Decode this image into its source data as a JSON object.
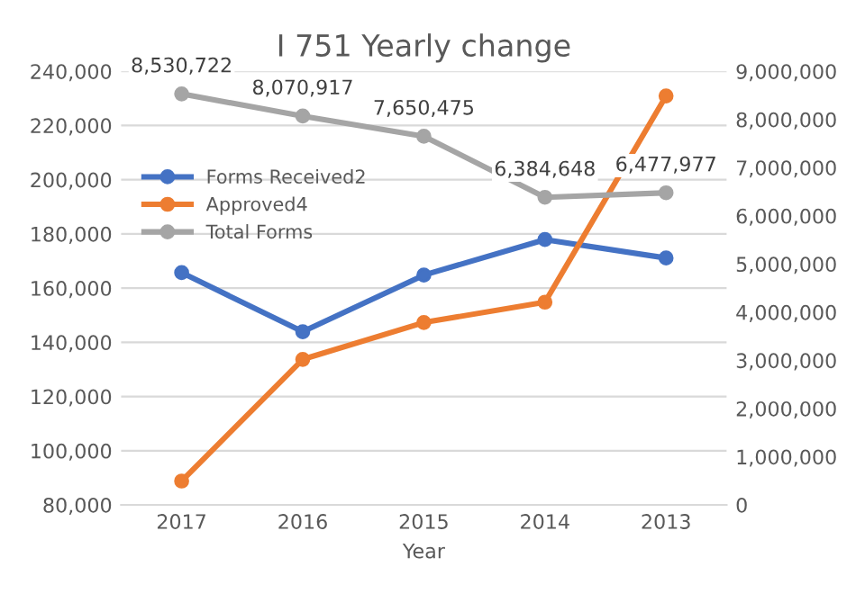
{
  "chart_data": {
    "type": "line",
    "title": "I 751 Yearly change",
    "xlabel": "Year",
    "categories": [
      "2017",
      "2016",
      "2015",
      "2014",
      "2013"
    ],
    "series": [
      {
        "name": "Forms Received2",
        "color": "#4472c4",
        "values": [
          165700,
          143900,
          164800,
          177900,
          171100
        ]
      },
      {
        "name": "Approved4",
        "color": "#ed7d31",
        "values": [
          88800,
          133700,
          147300,
          154800,
          230900
        ]
      },
      {
        "name": "Total Forms",
        "color": "#a5a5a5",
        "axis": "y2",
        "values": [
          8530722,
          8070917,
          7650475,
          6384648,
          6477977
        ],
        "value_labels": [
          "8,530,722",
          "8,070,917",
          "7,650,475",
          "6,384,648",
          "6,477,977"
        ]
      }
    ],
    "ylim": [
      80000,
      240000
    ],
    "yticks": [
      {
        "value": 80000,
        "label": "80,000"
      },
      {
        "value": 100000,
        "label": "100,000"
      },
      {
        "value": 120000,
        "label": "120,000"
      },
      {
        "value": 140000,
        "label": "140,000"
      },
      {
        "value": 160000,
        "label": "160,000"
      },
      {
        "value": 180000,
        "label": "180,000"
      },
      {
        "value": 200000,
        "label": "200,000"
      },
      {
        "value": 220000,
        "label": "220,000"
      },
      {
        "value": 240000,
        "label": "240,000"
      }
    ],
    "y2lim": [
      0,
      9000000
    ],
    "y2ticks": [
      0,
      {
        "value": 1000000,
        "label": "1,000,000"
      },
      {
        "value": 2000000,
        "label": "2,000,000"
      },
      {
        "value": 3000000,
        "label": "3,000,000"
      },
      {
        "value": 4000000,
        "label": "4,000,000"
      },
      {
        "value": 5000000,
        "label": "5,000,000"
      },
      {
        "value": 6000000,
        "label": "6,000,000"
      },
      {
        "value": 7000000,
        "label": "7,000,000"
      },
      {
        "value": 8000000,
        "label": "8,000,000"
      },
      {
        "value": 9000000,
        "label": "9,000,000"
      }
    ],
    "grid": "y",
    "legend": "left",
    "marker": "circle",
    "line_style": "solid"
  }
}
